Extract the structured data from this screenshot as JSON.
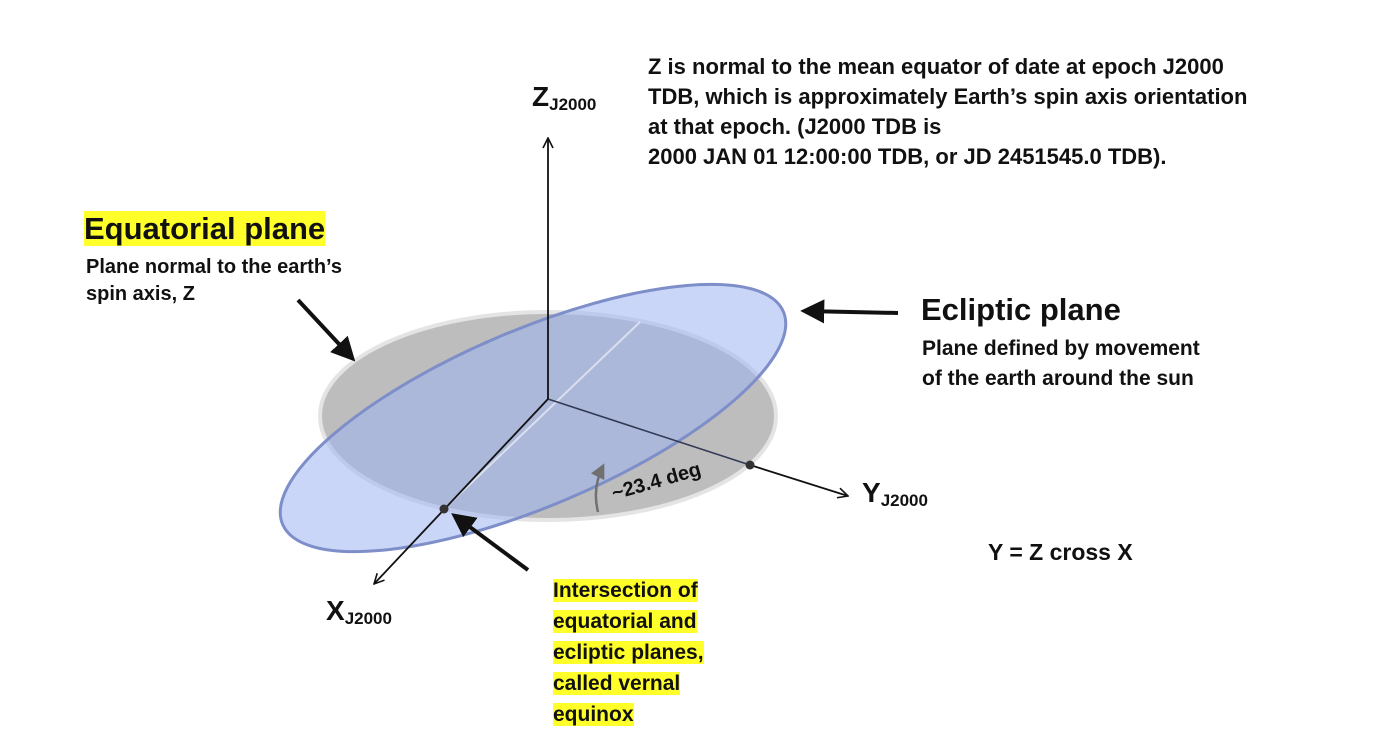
{
  "colors": {
    "equatorial_plane_fill": "#bdbdbd",
    "equatorial_plane_rim": "#e4e4e4",
    "ecliptic_plane_fill": "#9fb4f2",
    "ecliptic_plane_rim": "#7d8ec9",
    "highlight": "#ffff2a",
    "axis_stroke": "#111111",
    "angle_arrow": "#707070"
  },
  "axes": {
    "z": {
      "letter": "Z",
      "subscript": "J2000"
    },
    "y": {
      "letter": "Y",
      "subscript": "J2000"
    },
    "x": {
      "letter": "X",
      "subscript": "J2000"
    }
  },
  "note": {
    "lines": [
      "Z is normal to the mean equator of date at epoch J2000",
      "TDB, which is approximately Earth’s spin axis orientation",
      "at that epoch.  (J2000 TDB is",
      "2000 JAN 01 12:00:00 TDB, or JD 2451545.0  TDB)."
    ]
  },
  "equatorial": {
    "title": "Equatorial plane",
    "desc_lines": [
      "Plane normal to the earth’s",
      "spin axis, Z"
    ]
  },
  "ecliptic": {
    "title": "Ecliptic plane",
    "desc_lines": [
      "Plane defined by movement",
      "of the earth around the sun"
    ]
  },
  "angle_label": "~23.4 deg",
  "cross_product": "Y = Z cross X",
  "vernal": {
    "lines": [
      "Intersection of",
      "equatorial and",
      "ecliptic planes,",
      "called vernal",
      "equinox"
    ]
  }
}
